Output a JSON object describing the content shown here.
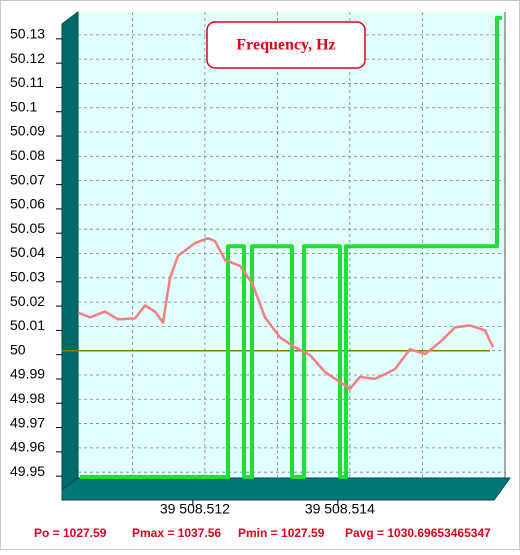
{
  "chart_data": {
    "type": "line",
    "title": "Frequency, Hz",
    "xlim": [
      39508.51025,
      39508.51614
    ],
    "xticks": [
      {
        "value": 39508.512,
        "label": "39 508.512"
      },
      {
        "value": 39508.514,
        "label": "39 508.514"
      }
    ],
    "minor_xticks": [
      39508.511,
      39508.513,
      39508.515
    ],
    "ylim": [
      49.9476,
      50.1394
    ],
    "yticks": [
      49.95,
      49.96,
      49.97,
      49.98,
      49.99,
      50,
      50.01,
      50.02,
      50.03,
      50.04,
      50.05,
      50.06,
      50.07,
      50.08,
      50.09,
      50.1,
      50.11,
      50.12,
      50.13
    ],
    "grid": true,
    "reference_line": {
      "value": 50,
      "color": "#808000"
    },
    "series": [
      {
        "color": "#22dd33",
        "width": 4,
        "x": [
          39508.510278,
          39508.512319,
          39508.512319,
          39508.51254,
          39508.51254,
          39508.51265,
          39508.51265,
          39508.513202,
          39508.513202,
          39508.513367,
          39508.513367,
          39508.513864,
          39508.513864,
          39508.513947,
          39508.513947,
          39508.516029,
          39508.516029,
          39508.516098
        ],
        "values": [
          49.948,
          49.948,
          50.043,
          50.043,
          49.948,
          49.948,
          50.043,
          50.043,
          49.948,
          49.948,
          50.043,
          50.043,
          49.948,
          49.948,
          50.043,
          50.043,
          50.137,
          50.137
        ]
      },
      {
        "color": "#f08080",
        "width": 2.5,
        "x": [
          39508.51025,
          39508.510416,
          39508.510622,
          39508.510802,
          39508.511036,
          39508.511174,
          39508.511312,
          39508.511422,
          39508.511519,
          39508.511629,
          39508.511864,
          39508.512043,
          39508.51214,
          39508.512278,
          39508.512484,
          39508.51265,
          39508.512829,
          39508.513036,
          39508.513243,
          39508.51345,
          39508.513657,
          39508.513864,
          39508.514002,
          39508.51414,
          39508.514347,
          39508.514622,
          39508.514829,
          39508.515036,
          39508.515243,
          39508.51545,
          39508.515657,
          39508.515864,
          39508.515974
        ],
        "values": [
          50.0157,
          50.0137,
          50.0161,
          50.0129,
          50.0133,
          50.0186,
          50.0161,
          50.0116,
          50.03,
          50.039,
          50.0443,
          50.0463,
          50.0451,
          50.0373,
          50.0349,
          50.028,
          50.0137,
          50.0055,
          50.0014,
          49.9982,
          49.9912,
          49.9871,
          49.9843,
          49.9892,
          49.9884,
          49.9924,
          50.0006,
          49.9986,
          50.0035,
          50.0096,
          50.0104,
          50.0084,
          50.0014
        ]
      }
    ],
    "footer": [
      "Po = 1027.59",
      "Pmax = 1037.56",
      "Pmin = 1027.59",
      "Pavg = 1030.69653465347"
    ]
  }
}
